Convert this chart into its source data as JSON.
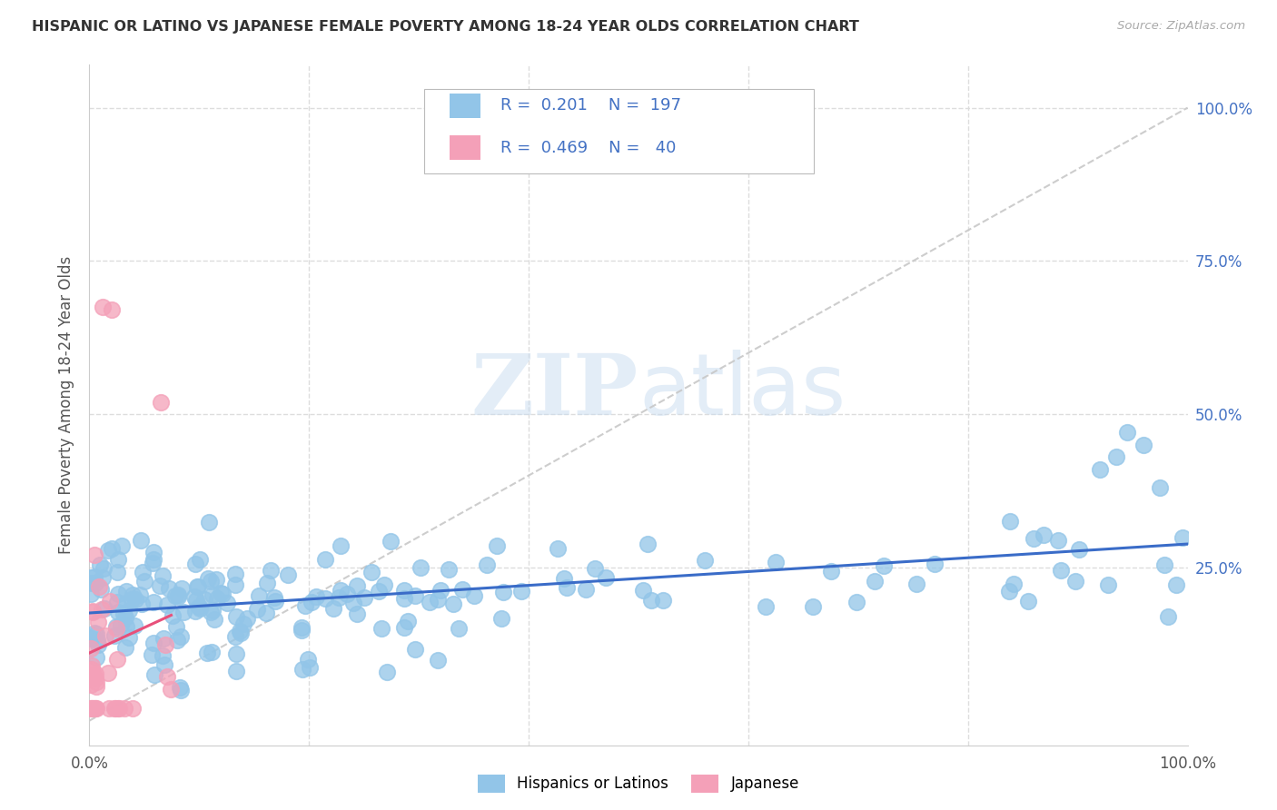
{
  "title": "HISPANIC OR LATINO VS JAPANESE FEMALE POVERTY AMONG 18-24 YEAR OLDS CORRELATION CHART",
  "source": "Source: ZipAtlas.com",
  "ylabel": "Female Poverty Among 18-24 Year Olds",
  "ylabel_right_ticks": [
    "100.0%",
    "75.0%",
    "50.0%",
    "25.0%"
  ],
  "ylabel_right_vals": [
    1.0,
    0.75,
    0.5,
    0.25
  ],
  "legend_label1": "Hispanics or Latinos",
  "legend_label2": "Japanese",
  "R1": 0.201,
  "N1": 197,
  "R2": 0.469,
  "N2": 40,
  "color_blue": "#92C5E8",
  "color_pink": "#F4A0B8",
  "color_blue_line": "#3A6CC8",
  "color_pink_line": "#E8507A",
  "color_text_blue": "#4472C4",
  "color_diag": "#C8C8C8",
  "color_grid": "#DDDDDD",
  "watermark_color": "#C8DCF0",
  "seed": 7,
  "blue_intercept": 0.185,
  "blue_slope": 0.065,
  "pink_intercept": 0.05,
  "pink_slope": 1.1
}
